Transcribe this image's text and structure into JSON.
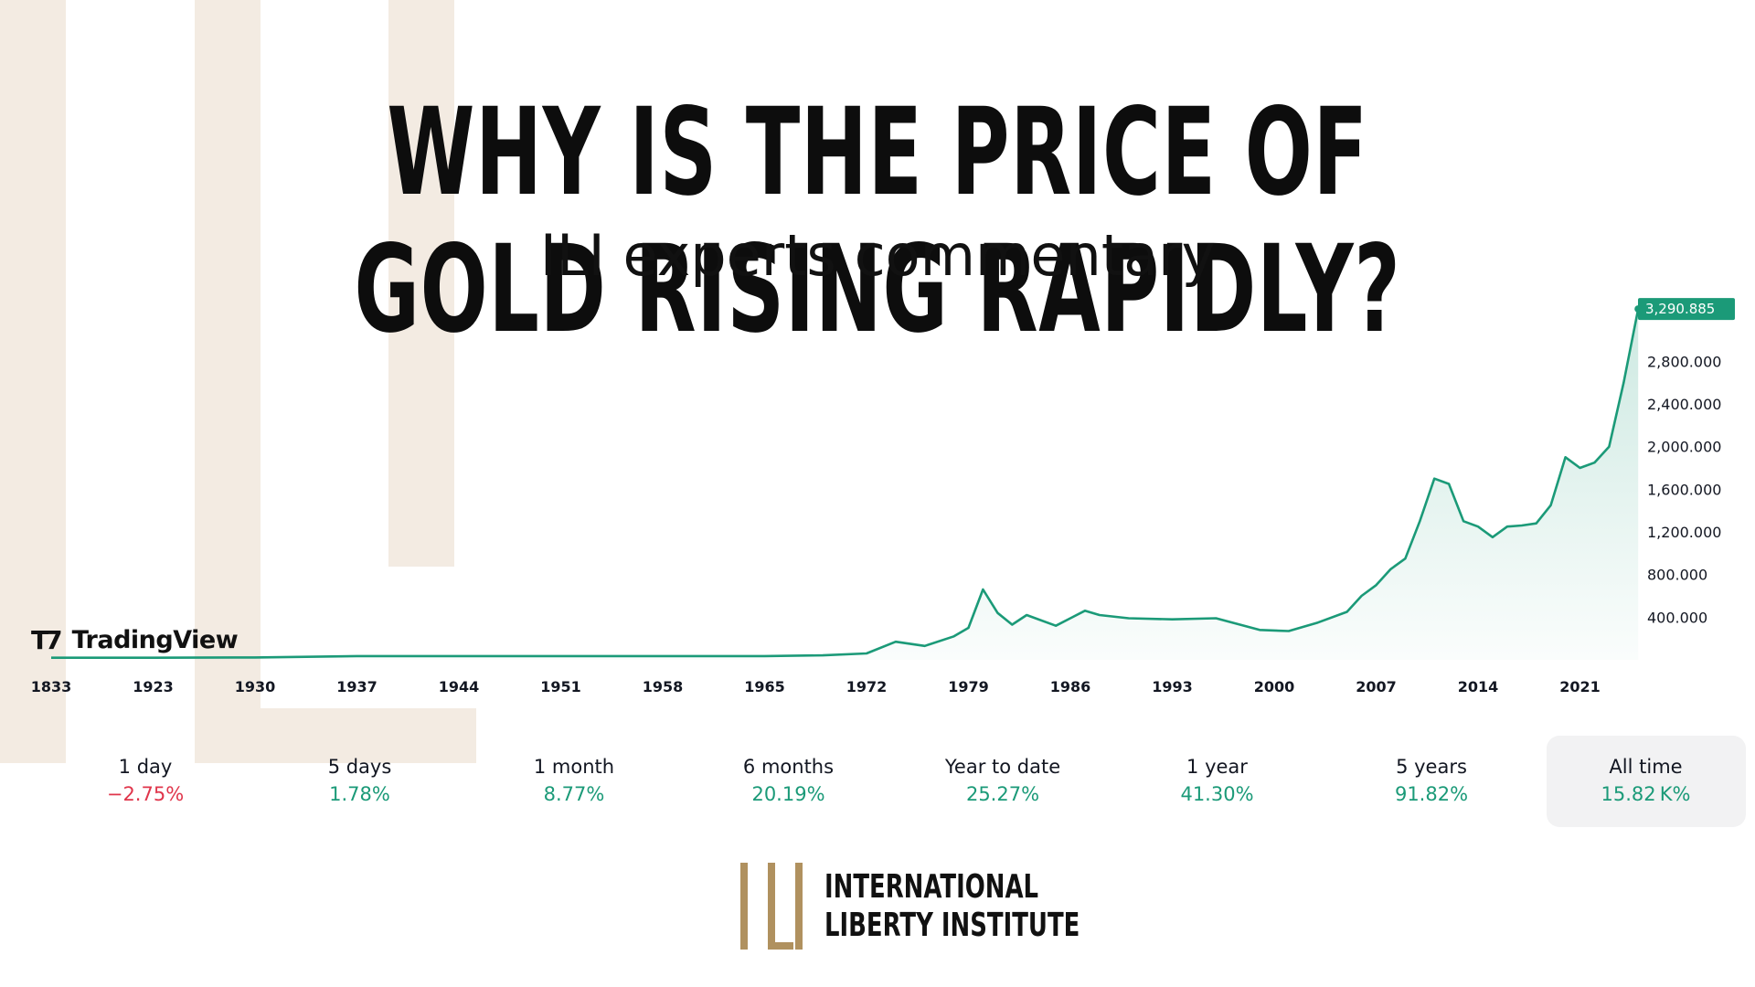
{
  "header": {
    "title": "WHY IS THE PRICE OF GOLD RISING RAPIDLY?",
    "subtitle": "ILI experts commentary"
  },
  "colors": {
    "background": "#ffffff",
    "accent_stripes": "#f3ebe2",
    "chart_line": "#1b9a78",
    "negative": "#e0354b",
    "positive": "#1b9a78",
    "logo_gold": "#b0915f"
  },
  "chart_data": {
    "type": "area",
    "title": "",
    "xlabel": "",
    "ylabel": "",
    "x_ticks": [
      "1833",
      "1923",
      "1930",
      "1937",
      "1944",
      "1951",
      "1958",
      "1965",
      "1972",
      "1979",
      "1986",
      "1993",
      "2000",
      "2007",
      "2014",
      "2021"
    ],
    "y_ticks": [
      "400.000",
      "800.000",
      "1,200.000",
      "1,600.000",
      "2,000.000",
      "2,400.000",
      "2,800.000"
    ],
    "ylim": [
      0,
      3300
    ],
    "last_value": 3290.885,
    "last_value_label": "3,290.885",
    "grid": false,
    "legend": "none",
    "series": [
      {
        "x": [
          "1833",
          "1923",
          "1930",
          "1937",
          "1944",
          "1951",
          "1958",
          "1965",
          "1969",
          "1972",
          "1974",
          "1976",
          "1978",
          "1979",
          "1980",
          "1981",
          "1982",
          "1983",
          "1985",
          "1986",
          "1987",
          "1988",
          "1990",
          "1993",
          "1996",
          "1999",
          "2001",
          "2003",
          "2005",
          "2006",
          "2007",
          "2008",
          "2009",
          "2010",
          "2011",
          "2012",
          "2013",
          "2014",
          "2015",
          "2016",
          "2017",
          "2018",
          "2019",
          "2020",
          "2021",
          "2022",
          "2023",
          "2024",
          "2025"
        ],
        "values": [
          20,
          20,
          22,
          35,
          35,
          35,
          35,
          35,
          42,
          60,
          170,
          130,
          220,
          300,
          660,
          440,
          330,
          420,
          320,
          390,
          460,
          420,
          390,
          380,
          390,
          280,
          270,
          350,
          450,
          600,
          700,
          850,
          950,
          1300,
          1700,
          1650,
          1300,
          1250,
          1150,
          1250,
          1260,
          1280,
          1450,
          1900,
          1800,
          1850,
          2000,
          2600,
          3290.885
        ]
      }
    ]
  },
  "tradingview": {
    "name": "TradingView"
  },
  "periods": [
    {
      "label": "1 day",
      "value": "−2.75%",
      "trend": "down"
    },
    {
      "label": "5 days",
      "value": "1.78%",
      "trend": "up"
    },
    {
      "label": "1 month",
      "value": "8.77%",
      "trend": "up"
    },
    {
      "label": "6 months",
      "value": "20.19%",
      "trend": "up"
    },
    {
      "label": "Year to date",
      "value": "25.27%",
      "trend": "up"
    },
    {
      "label": "1 year",
      "value": "41.30%",
      "trend": "up"
    },
    {
      "label": "5 years",
      "value": "91.82%",
      "trend": "up"
    },
    {
      "label": "All time",
      "value": "15.82 K%",
      "trend": "up",
      "selected": true
    }
  ],
  "footer": {
    "org_line1": "INTERNATIONAL",
    "org_line2": "LIBERTY INSTITUTE"
  }
}
